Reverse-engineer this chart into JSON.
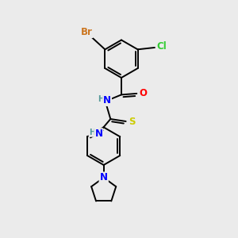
{
  "background_color": "#ebebeb",
  "bond_color": "#000000",
  "atom_colors": {
    "Br": "#cc7722",
    "Cl": "#33cc33",
    "N": "#0000ff",
    "O": "#ff0000",
    "S": "#cccc00",
    "H": "#559999",
    "C": "#000000"
  },
  "figsize": [
    3.0,
    3.0
  ],
  "dpi": 100
}
